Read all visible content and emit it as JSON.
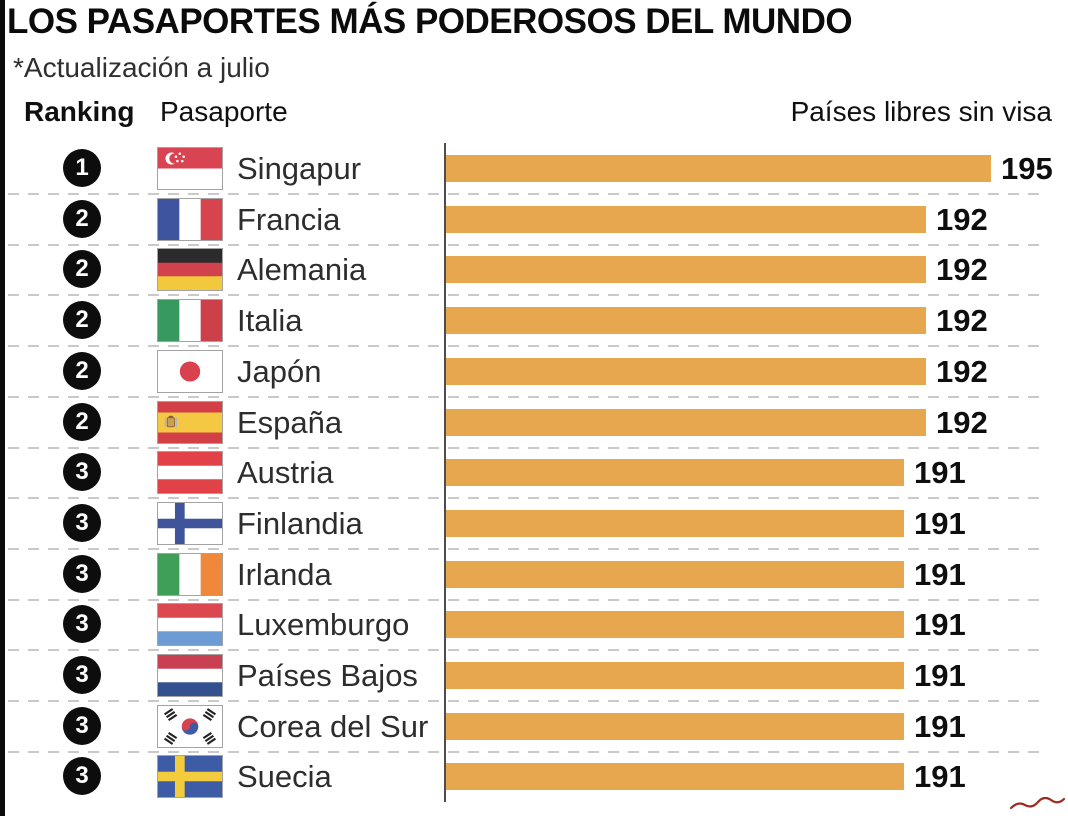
{
  "title": "LOS PASAPORTES MÁS PODEROSOS DEL MUNDO",
  "subtitle": "*Actualización a julio",
  "columns": {
    "ranking": "Ranking",
    "passport": "Pasaporte",
    "value": "Países libres sin visa"
  },
  "colors": {
    "bar": "#E6A74F",
    "rank_badge": "#0d0d0d",
    "axis_line": "#4d4d4d",
    "row_divider": "#c9c9c9",
    "left_strip": "#0a0a0a",
    "corner_mark": "#9C2B21"
  },
  "chart_data": {
    "type": "bar",
    "orientation": "horizontal",
    "title": "LOS PASAPORTES MÁS PODEROSOS DEL MUNDO",
    "subtitle": "*Actualización a julio",
    "value_axis_label": "Países libres sin visa",
    "categories": [
      "Singapur",
      "Francia",
      "Alemania",
      "Italia",
      "Japón",
      "España",
      "Austria",
      "Finlandia",
      "Irlanda",
      "Luxemburgo",
      "Países Bajos",
      "Corea del Sur",
      "Suecia"
    ],
    "values": [
      195,
      192,
      192,
      192,
      192,
      192,
      191,
      191,
      191,
      191,
      191,
      191,
      191
    ],
    "ranks": [
      1,
      2,
      2,
      2,
      2,
      2,
      3,
      3,
      3,
      3,
      3,
      3,
      3
    ],
    "bar_color": "#E6A74F",
    "value_labels_shown": true,
    "grid": "dashed row separators",
    "legend": "none",
    "value_axis_visual_range": [
      170,
      196
    ]
  },
  "rows": [
    {
      "rank": "1",
      "country": "Singapur",
      "flag": "singapore",
      "value": 195
    },
    {
      "rank": "2",
      "country": "Francia",
      "flag": "france",
      "value": 192
    },
    {
      "rank": "2",
      "country": "Alemania",
      "flag": "germany",
      "value": 192
    },
    {
      "rank": "2",
      "country": "Italia",
      "flag": "italy",
      "value": 192
    },
    {
      "rank": "2",
      "country": "Japón",
      "flag": "japan",
      "value": 192
    },
    {
      "rank": "2",
      "country": "España",
      "flag": "spain",
      "value": 192
    },
    {
      "rank": "3",
      "country": "Austria",
      "flag": "austria",
      "value": 191
    },
    {
      "rank": "3",
      "country": "Finlandia",
      "flag": "finland",
      "value": 191
    },
    {
      "rank": "3",
      "country": "Irlanda",
      "flag": "ireland",
      "value": 191
    },
    {
      "rank": "3",
      "country": "Luxemburgo",
      "flag": "luxembourg",
      "value": 191
    },
    {
      "rank": "3",
      "country": "Países Bajos",
      "flag": "netherlands",
      "value": 191
    },
    {
      "rank": "3",
      "country": "Corea del Sur",
      "flag": "south-korea",
      "value": 191
    },
    {
      "rank": "3",
      "country": "Suecia",
      "flag": "sweden",
      "value": 191
    }
  ]
}
